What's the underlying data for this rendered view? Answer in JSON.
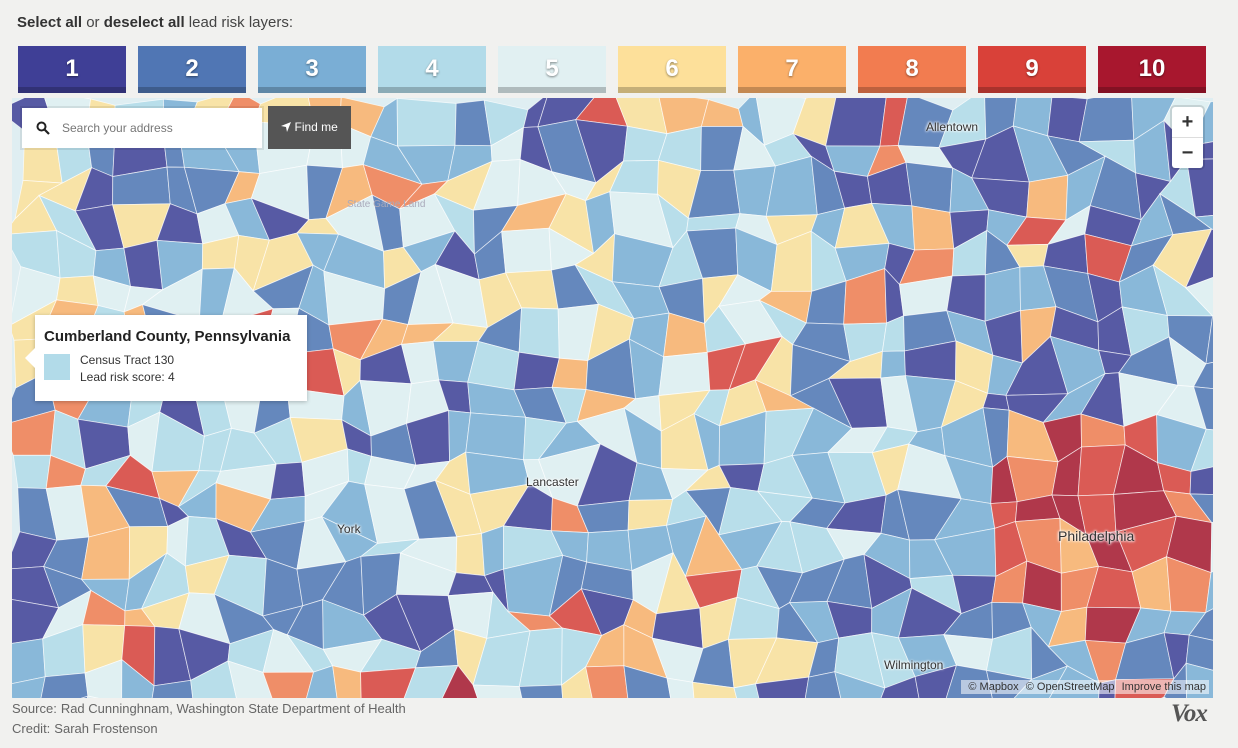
{
  "header": {
    "select_all": "Select all",
    "or": "or",
    "deselect_all": "deselect all",
    "suffix": "lead risk layers:"
  },
  "layers": [
    {
      "label": "1",
      "color": "#3f3f96"
    },
    {
      "label": "2",
      "color": "#5076b4"
    },
    {
      "label": "3",
      "color": "#7aaed5"
    },
    {
      "label": "4",
      "color": "#b2dbe9"
    },
    {
      "label": "5",
      "color": "#e1f0f2"
    },
    {
      "label": "6",
      "color": "#fde09a"
    },
    {
      "label": "7",
      "color": "#fbb06a"
    },
    {
      "label": "8",
      "color": "#f27c50"
    },
    {
      "label": "9",
      "color": "#d94139"
    },
    {
      "label": "10",
      "color": "#a8172e"
    }
  ],
  "search": {
    "placeholder": "Search your address",
    "button": "Find me"
  },
  "zoom": {
    "in": "+",
    "out": "−"
  },
  "tooltip": {
    "title": "Cumberland County, Pennsylvania",
    "tract": "Census Tract 130",
    "score": "Lead risk score: 4"
  },
  "places": [
    "Allentown",
    "State Game Land",
    "Lancaster",
    "York",
    "Philadelphia",
    "Wilmington"
  ],
  "attribution": [
    "© Mapbox",
    "© OpenStreetMap",
    "Improve this map"
  ],
  "footer": {
    "source_label": "Source:",
    "source": "Rad Cunninghnam, Washington State Department of Health",
    "credit_label": "Credit:",
    "credit": "Sarah Frostenson"
  },
  "logo": "Vox"
}
